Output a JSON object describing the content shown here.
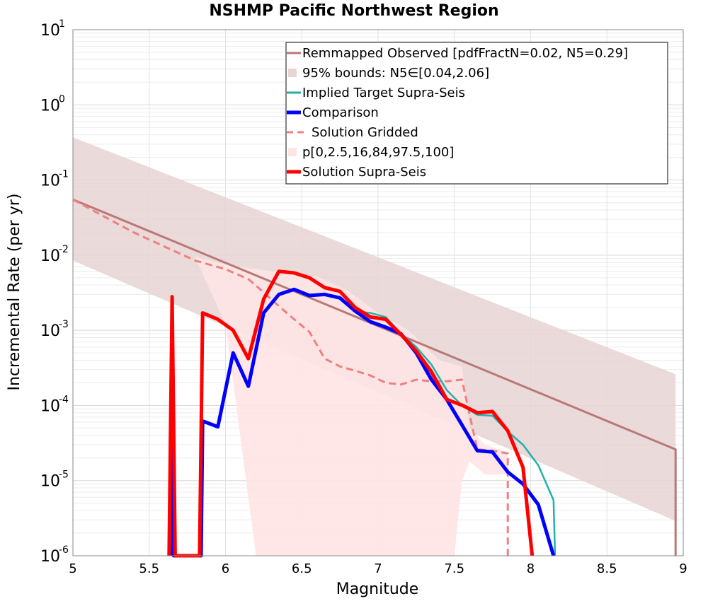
{
  "chart_data": {
    "type": "line",
    "title": "NSHMP Pacific Northwest Region",
    "xlabel": "Magnitude",
    "ylabel": "Incremental Rate (per yr)",
    "xlim": [
      5,
      9
    ],
    "ylim": [
      1e-06,
      10
    ],
    "y_scale": "log",
    "grid": true,
    "legend_position": "top-right",
    "x_ticks": [
      "5",
      "5.5",
      "6",
      "6.5",
      "7",
      "7.5",
      "8",
      "8.5",
      "9"
    ],
    "y_ticks": [
      {
        "base": "10",
        "exp": "-6"
      },
      {
        "base": "10",
        "exp": "-5"
      },
      {
        "base": "10",
        "exp": "-4"
      },
      {
        "base": "10",
        "exp": "-3"
      },
      {
        "base": "10",
        "exp": "-2"
      },
      {
        "base": "10",
        "exp": "-1"
      },
      {
        "base": "10",
        "exp": "0"
      },
      {
        "base": "10",
        "exp": "1"
      }
    ],
    "legend": [
      {
        "label": "Remmapped Observed [pdfFractN=0.02, N5=0.29]",
        "style": "line",
        "color": "#b87878"
      },
      {
        "label": "95% bounds: N5∈[0.04,2.06]",
        "style": "fill",
        "color": "#e8d4d4"
      },
      {
        "label": "Implied Target Supra-Seis",
        "style": "line",
        "color": "#20b2aa"
      },
      {
        "label": "Comparison",
        "style": "thick",
        "color": "#0000ff"
      },
      {
        "label": "Solution Gridded",
        "style": "dashed",
        "color": "#f08080"
      },
      {
        "label": "p[0,2.5,16,84,97.5,100]",
        "style": "fill",
        "color": "#ffe4e4"
      },
      {
        "label": "Solution Supra-Seis",
        "style": "thick",
        "color": "#ff0000"
      }
    ],
    "series": [
      {
        "name": "Remmapped Observed [pdfFractN=0.02, N5=0.29]",
        "color": "#b87878",
        "x": [
          5.0,
          8.95,
          8.95
        ],
        "y": [
          0.055,
          2.6e-05,
          1e-06
        ]
      },
      {
        "name": "95% bounds: N5∈[0.04,2.06]",
        "color": "#e8d4d4",
        "x": [
          5.0,
          8.95
        ],
        "y_upper": [
          0.37,
          0.00026
        ],
        "y_lower": [
          0.0085,
          2.9e-06
        ]
      },
      {
        "name": "Implied Target Supra-Seis",
        "color": "#20b2aa",
        "x": [
          6.25,
          6.35,
          6.45,
          6.55,
          6.65,
          6.75,
          6.85,
          6.95,
          7.05,
          7.15,
          7.25,
          7.35,
          7.45,
          7.55,
          7.65,
          7.75,
          7.85,
          7.95,
          8.05,
          8.15,
          8.16
        ],
        "y": [
          0.0017,
          0.003,
          0.0035,
          0.0029,
          0.003,
          0.0027,
          0.0018,
          0.0017,
          0.0015,
          0.0009,
          0.0006,
          0.00035,
          0.00016,
          0.0001,
          7.5e-05,
          7.3e-05,
          4.5e-05,
          3e-05,
          1.6e-05,
          5.5e-06,
          1e-06
        ]
      },
      {
        "name": "Comparison",
        "color": "#0000ff",
        "x": [
          5.64,
          5.65,
          5.66,
          5.84,
          5.85,
          5.95,
          6.05,
          6.15,
          6.25,
          6.35,
          6.45,
          6.55,
          6.65,
          6.75,
          6.85,
          6.95,
          7.05,
          7.15,
          7.25,
          7.35,
          7.45,
          7.55,
          7.65,
          7.75,
          7.85,
          7.95,
          8.05,
          8.15
        ],
        "y": [
          1e-06,
          5e-05,
          1e-06,
          1e-06,
          6.2e-05,
          5.2e-05,
          0.0005,
          0.00018,
          0.0017,
          0.003,
          0.0035,
          0.0029,
          0.003,
          0.0027,
          0.0018,
          0.0013,
          0.0011,
          0.0009,
          0.0005,
          0.00022,
          0.00012,
          5.5e-05,
          2.5e-05,
          2.4e-05,
          1.3e-05,
          9e-06,
          4.8e-06,
          1e-06
        ]
      },
      {
        "name": "Solution Gridded",
        "color": "#f08080",
        "x": [
          5.0,
          5.2,
          5.4,
          5.6,
          5.8,
          6.0,
          6.15,
          6.25,
          6.35,
          6.45,
          6.55,
          6.65,
          6.75,
          6.85,
          6.95,
          7.05,
          7.15,
          7.25,
          7.35,
          7.45,
          7.55,
          7.65,
          7.75,
          7.85,
          7.85
        ],
        "y": [
          0.055,
          0.033,
          0.02,
          0.013,
          0.0085,
          0.0065,
          0.0048,
          0.0032,
          0.0021,
          0.0014,
          0.00095,
          0.00042,
          0.00033,
          0.00029,
          0.00025,
          0.0002,
          0.00019,
          0.00022,
          0.00021,
          0.00021,
          0.00022,
          2.6e-05,
          2.5e-05,
          2.3e-05,
          1e-06
        ]
      },
      {
        "name": "p[0,2.5,16,84,97.5,100]",
        "color": "#ffe4e4",
        "x": [
          5.0,
          5.4,
          5.8,
          6.0,
          6.2,
          6.4,
          6.6,
          6.8,
          7.0,
          7.2,
          7.4,
          7.5,
          7.55,
          7.6,
          7.7,
          7.85
        ],
        "y_upper": [
          0.055,
          0.022,
          0.0095,
          0.0075,
          0.0065,
          0.0058,
          0.0052,
          0.0034,
          0.0017,
          0.001,
          0.0004,
          0.00035,
          0.00033,
          5e-05,
          3e-05,
          2.4e-05
        ],
        "y_lower": [
          0.055,
          0.022,
          0.0095,
          0.0012,
          1e-06,
          1e-06,
          1e-06,
          1e-06,
          1e-06,
          1e-06,
          1e-06,
          1e-06,
          1e-05,
          1.8e-05,
          1.2e-05,
          1.2e-05
        ]
      },
      {
        "name": "Solution Supra-Seis",
        "color": "#ff0000",
        "x": [
          5.63,
          5.65,
          5.67,
          5.83,
          5.85,
          5.95,
          6.05,
          6.15,
          6.25,
          6.35,
          6.45,
          6.55,
          6.65,
          6.75,
          6.85,
          6.95,
          7.05,
          7.15,
          7.25,
          7.35,
          7.45,
          7.55,
          7.65,
          7.75,
          7.85,
          7.95,
          8.01
        ],
        "y": [
          1e-06,
          0.0028,
          1e-06,
          1e-06,
          0.0017,
          0.0014,
          0.001,
          0.00042,
          0.0026,
          0.0061,
          0.0058,
          0.005,
          0.0037,
          0.0033,
          0.002,
          0.0015,
          0.0014,
          0.00088,
          0.00053,
          0.00028,
          0.00012,
          0.000101,
          8e-05,
          8.3e-05,
          4.6e-05,
          1.5e-05,
          1e-06
        ]
      }
    ]
  }
}
